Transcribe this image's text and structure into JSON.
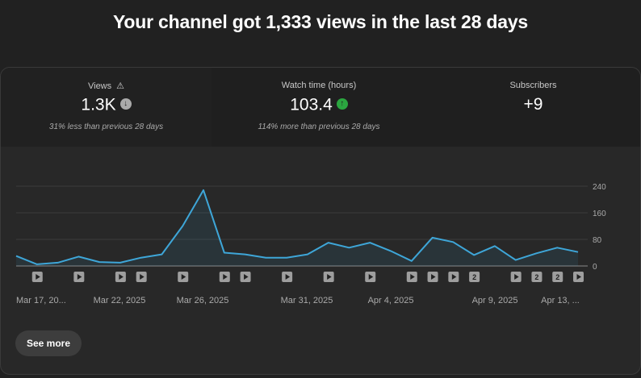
{
  "header": {
    "title": "Your channel got 1,333 views in the last 28 days"
  },
  "metrics": [
    {
      "label": "Views",
      "value": "1.3K",
      "trend": "down",
      "note": "31% less than previous 28 days",
      "warning_icon": "warning-icon"
    },
    {
      "label": "Watch time (hours)",
      "value": "103.4",
      "trend": "up",
      "note": "114% more than previous 28 days"
    },
    {
      "label": "Subscribers",
      "value": "+9"
    }
  ],
  "colors": {
    "line": "#3ea6d8",
    "up": "#2ba640",
    "down": "#aaaaaa",
    "background": "#212121"
  },
  "chart_data": {
    "type": "area",
    "y_ticks": [
      "240",
      "160",
      "80",
      "0"
    ],
    "ylim": [
      0,
      240
    ],
    "x_tick_labels": [
      "Mar 17, 20...",
      "Mar 22, 2025",
      "Mar 26, 2025",
      "Mar 31, 2025",
      "Apr 4, 2025",
      "Apr 9, 2025",
      "Apr 13, ..."
    ],
    "values": [
      30,
      5,
      10,
      28,
      12,
      10,
      25,
      35,
      120,
      228,
      40,
      35,
      25,
      25,
      35,
      70,
      55,
      70,
      45,
      15,
      85,
      72,
      33,
      60,
      18,
      38,
      55,
      42
    ],
    "upload_markers": [
      {
        "index": 1,
        "label": ""
      },
      {
        "index": 3,
        "label": ""
      },
      {
        "index": 5,
        "label": ""
      },
      {
        "index": 6,
        "label": ""
      },
      {
        "index": 8,
        "label": ""
      },
      {
        "index": 10,
        "label": ""
      },
      {
        "index": 11,
        "label": ""
      },
      {
        "index": 13,
        "label": ""
      },
      {
        "index": 15,
        "label": ""
      },
      {
        "index": 17,
        "label": ""
      },
      {
        "index": 19,
        "label": ""
      },
      {
        "index": 20,
        "label": ""
      },
      {
        "index": 21,
        "label": ""
      },
      {
        "index": 22,
        "label": "2"
      },
      {
        "index": 24,
        "label": ""
      },
      {
        "index": 25,
        "label": "2"
      },
      {
        "index": 26,
        "label": "2"
      },
      {
        "index": 27,
        "label": ""
      }
    ]
  },
  "actions": {
    "see_more": "See more"
  }
}
